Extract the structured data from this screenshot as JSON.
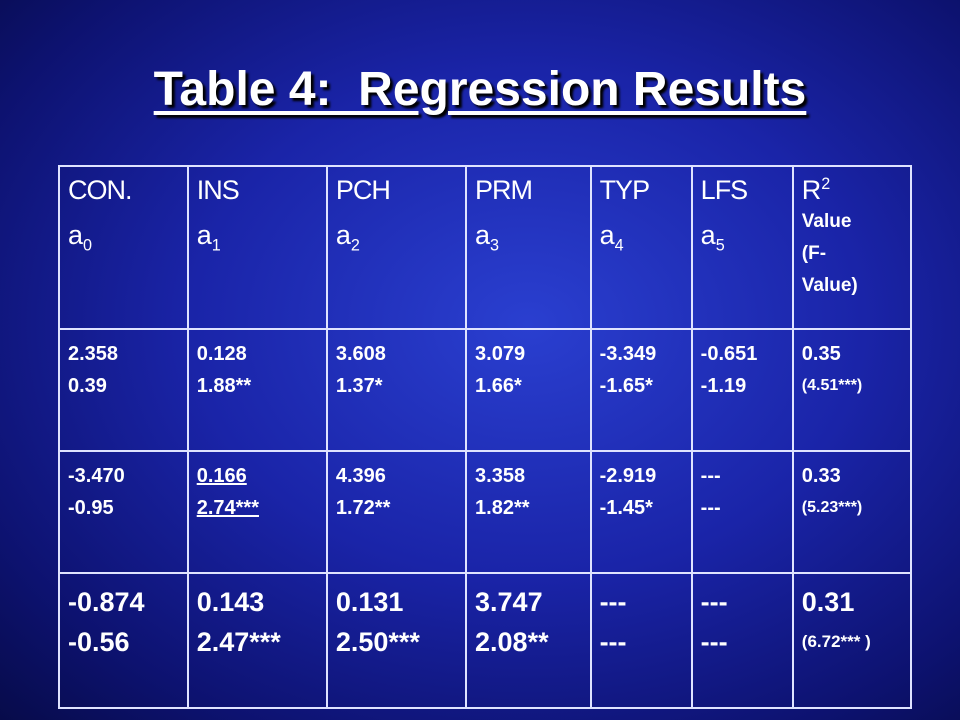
{
  "title": "Table 4:  Regression Results",
  "table": {
    "header": [
      {
        "name": "CON.",
        "symbol": "a",
        "sub": "0"
      },
      {
        "name": "INS",
        "symbol": "a",
        "sub": "1"
      },
      {
        "name": "PCH",
        "symbol": "a",
        "sub": "2"
      },
      {
        "name": "PRM",
        "symbol": "a",
        "sub": "3"
      },
      {
        "name": "TYP",
        "symbol": "a",
        "sub": "4"
      },
      {
        "name": "LFS",
        "symbol": "a",
        "sub": "5"
      },
      {
        "name": "R",
        "sup": "2",
        "lines": [
          "Value",
          "(F-",
          "Value)"
        ]
      }
    ],
    "rows": [
      [
        [
          "2.358",
          "0.39"
        ],
        [
          "0.128",
          "1.88**"
        ],
        [
          "3.608",
          "1.37*"
        ],
        [
          "3.079",
          "1.66*"
        ],
        [
          "-3.349",
          "-1.65*"
        ],
        [
          "-0.651",
          "-1.19"
        ],
        [
          "0.35",
          "(4.51***)"
        ]
      ],
      [
        [
          "-3.470",
          "-0.95"
        ],
        [
          "0.166",
          "2.74***"
        ],
        [
          "4.396",
          "1.72**"
        ],
        [
          "3.358",
          "1.82**"
        ],
        [
          "-2.919",
          "-1.45*"
        ],
        [
          "---",
          "---"
        ],
        [
          "0.33",
          "(5.23***)"
        ]
      ],
      [
        [
          "-0.874",
          "-0.56"
        ],
        [
          "0.143",
          "2.47***"
        ],
        [
          "0.131",
          "2.50***"
        ],
        [
          "3.747",
          "2.08**"
        ],
        [
          "---",
          "---"
        ],
        [
          "---",
          "---"
        ],
        [
          "0.31",
          "(6.72*** )"
        ]
      ]
    ]
  }
}
